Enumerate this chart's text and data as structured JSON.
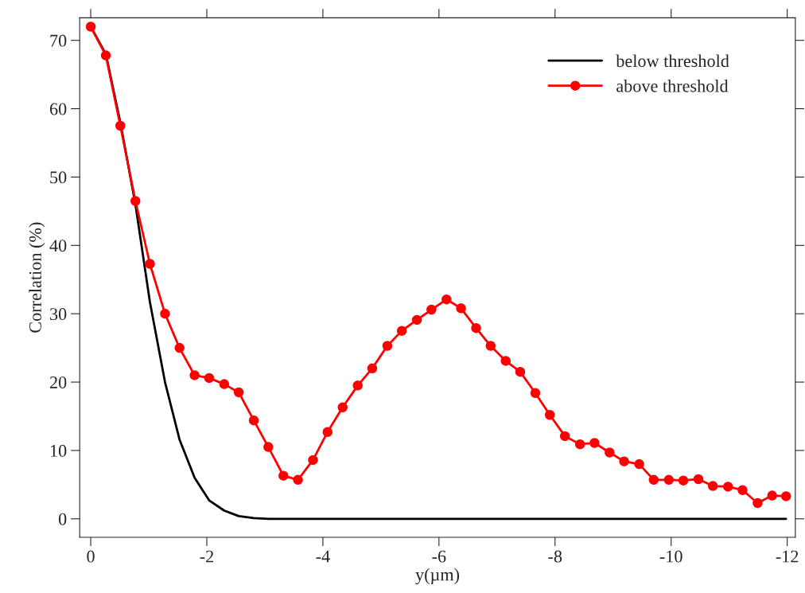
{
  "chart_data": {
    "type": "line",
    "xlabel": "y(µm)",
    "ylabel": "Correlation (%)",
    "x": [
      0,
      -0.26,
      -0.51,
      -0.77,
      -1.02,
      -1.28,
      -1.53,
      -1.79,
      -2.04,
      -2.3,
      -2.55,
      -2.81,
      -3.06,
      -3.32,
      -3.57,
      -3.83,
      -4.08,
      -4.34,
      -4.6,
      -4.85,
      -5.11,
      -5.36,
      -5.62,
      -5.87,
      -6.13,
      -6.38,
      -6.64,
      -6.89,
      -7.15,
      -7.4,
      -7.66,
      -7.91,
      -8.17,
      -8.43,
      -8.68,
      -8.94,
      -9.19,
      -9.45,
      -9.7,
      -9.96,
      -10.21,
      -10.47,
      -10.72,
      -10.98,
      -11.23,
      -11.49,
      -11.74,
      -11.98
    ],
    "series": [
      {
        "name": "below threshold",
        "color": "#000000",
        "marker": "none",
        "values": [
          72,
          68,
          58,
          46,
          31.7,
          20,
          11.6,
          6,
          2.7,
          1.2,
          0.4,
          0.1,
          0,
          0,
          0,
          0,
          0,
          0,
          0,
          0,
          0,
          0,
          0,
          0,
          0,
          0,
          0,
          0,
          0,
          0,
          0,
          0,
          0,
          0,
          0,
          0,
          0,
          0,
          0,
          0,
          0,
          0,
          0,
          0,
          0,
          0,
          0,
          0
        ]
      },
      {
        "name": "above threshold",
        "color": "#ff0000",
        "marker": "circle",
        "values": [
          72,
          67.8,
          57.5,
          46.5,
          37.3,
          30,
          25,
          21,
          20.6,
          19.7,
          18.5,
          14.4,
          10.5,
          6.3,
          5.7,
          8.6,
          12.7,
          16.3,
          19.5,
          22,
          25.3,
          27.5,
          29.1,
          30.6,
          32.1,
          30.8,
          27.9,
          25.3,
          23.1,
          21.5,
          18.4,
          15.2,
          12.1,
          10.9,
          11.1,
          9.7,
          8.4,
          8,
          5.7,
          5.7,
          5.6,
          5.8,
          4.8,
          4.7,
          4.2,
          2.3,
          3.4,
          3.3
        ]
      }
    ],
    "xlim": [
      0.19,
      -12.14
    ],
    "ylim": [
      -2.7,
      73.3
    ],
    "xticks": [
      0,
      {
        "value": -2,
        "label": "-2"
      },
      {
        "value": -4,
        "label": "-4"
      },
      {
        "value": -6,
        "label": "-6"
      },
      {
        "value": -8,
        "label": "-8"
      },
      {
        "value": -10,
        "label": "-10"
      },
      {
        "value": -12,
        "label": "-12"
      }
    ],
    "yticks": [
      0,
      10,
      20,
      30,
      40,
      50,
      60,
      70
    ],
    "grid": false,
    "legend": "top right",
    "line_style": "solid"
  }
}
